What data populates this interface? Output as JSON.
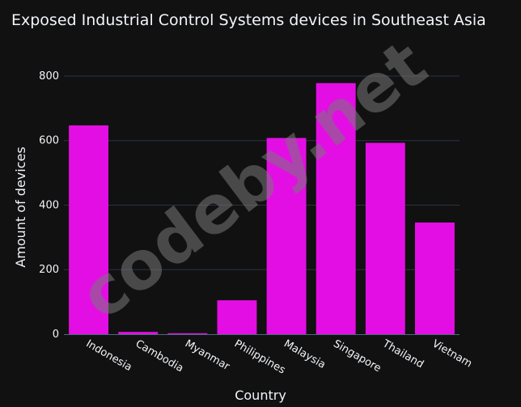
{
  "colors": {
    "background": "#111111",
    "bar": "#e30ee3",
    "grid": "#283442",
    "axis_line": "#506784",
    "text": "#f2f5fa",
    "watermark": "rgba(120,120,120,0.55)"
  },
  "watermark": "codeby.net",
  "chart_data": {
    "type": "bar",
    "title": "Exposed Industrial Control Systems devices in Southeast Asia",
    "xlabel": "Country",
    "ylabel": "Amount of devices",
    "categories": [
      "Indonesia",
      "Cambodia",
      "Myanmar",
      "Philippines",
      "Malaysia",
      "Singapore",
      "Thailand",
      "Vietnam"
    ],
    "values": [
      647,
      7,
      3,
      105,
      608,
      778,
      593,
      346
    ],
    "ylim": [
      0,
      830
    ],
    "yticks": [
      0,
      200,
      400,
      600,
      800
    ],
    "grid": true
  }
}
